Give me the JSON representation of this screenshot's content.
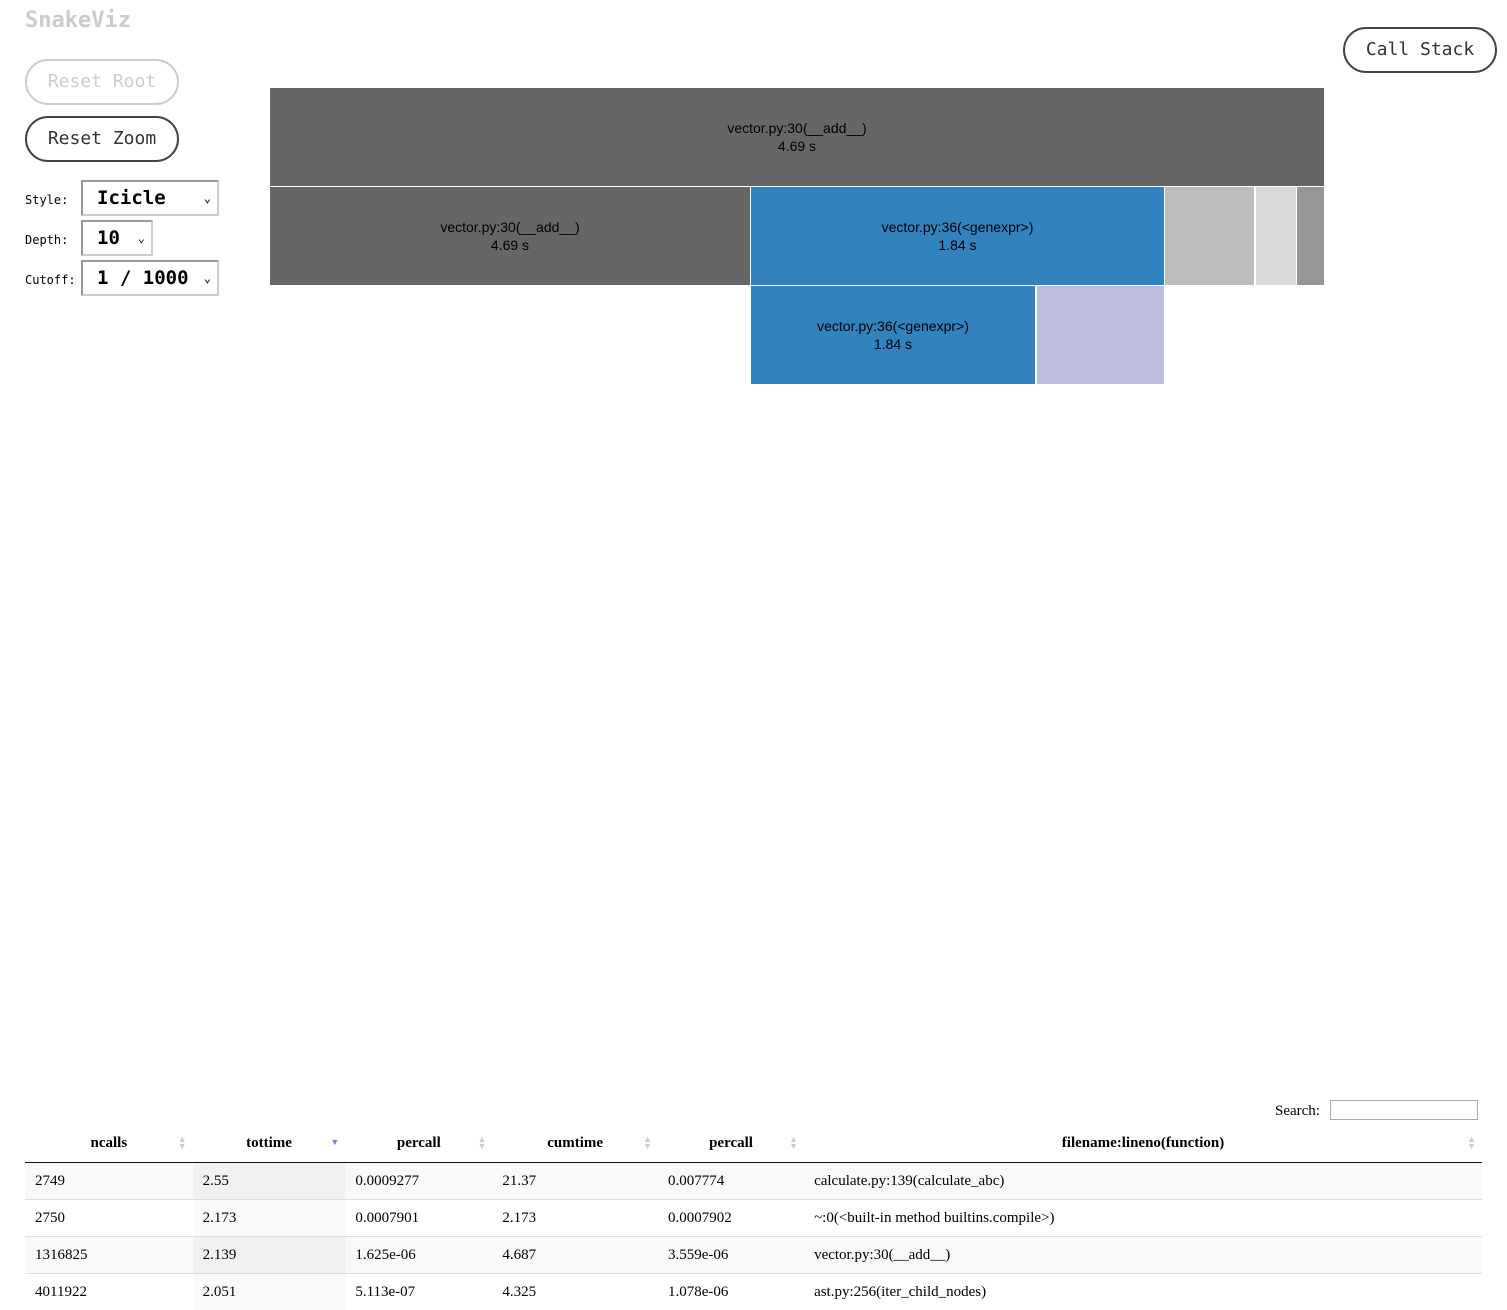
{
  "app_title": "SnakeViz",
  "buttons": {
    "reset_root": "Reset Root",
    "reset_zoom": "Reset Zoom",
    "call_stack": "Call Stack"
  },
  "controls": {
    "style_label": "Style:",
    "style_value": "Icicle",
    "depth_label": "Depth:",
    "depth_value": "10",
    "cutoff_label": "Cutoff:",
    "cutoff_value": "1 / 1000"
  },
  "icicle": [
    {
      "name": "vector.py:30(__add__)",
      "time": "4.69 s",
      "color": "#666666"
    },
    {
      "name": "vector.py:30(__add__)",
      "time": "4.69 s",
      "color": "#666666"
    },
    {
      "name": "vector.py:36(<genexpr>)",
      "time": "1.84 s",
      "color": "#3182bd"
    },
    {
      "color": "#bdbdbd"
    },
    {
      "color": "#d9d9d9"
    },
    {
      "color": "#969696"
    },
    {
      "name": "vector.py:36(<genexpr>)",
      "time": "1.84 s",
      "color": "#3182bd"
    },
    {
      "color": "#bcbddc"
    }
  ],
  "search": {
    "label": "Search:",
    "value": ""
  },
  "table": {
    "headers": [
      "ncalls",
      "tottime",
      "percall",
      "cumtime",
      "percall",
      "filename:lineno(function)"
    ],
    "rows": [
      [
        "2749",
        "2.55",
        "0.0009277",
        "21.37",
        "0.007774",
        "calculate.py:139(calculate_abc)"
      ],
      [
        "2750",
        "2.173",
        "0.0007901",
        "2.173",
        "0.0007902",
        "~:0(<built-in method builtins.compile>)"
      ],
      [
        "1316825",
        "2.139",
        "1.625e-06",
        "4.687",
        "3.559e-06",
        "vector.py:30(__add__)"
      ],
      [
        "4011922",
        "2.051",
        "5.113e-07",
        "4.325",
        "1.078e-06",
        "ast.py:256(iter_child_nodes)"
      ]
    ]
  }
}
